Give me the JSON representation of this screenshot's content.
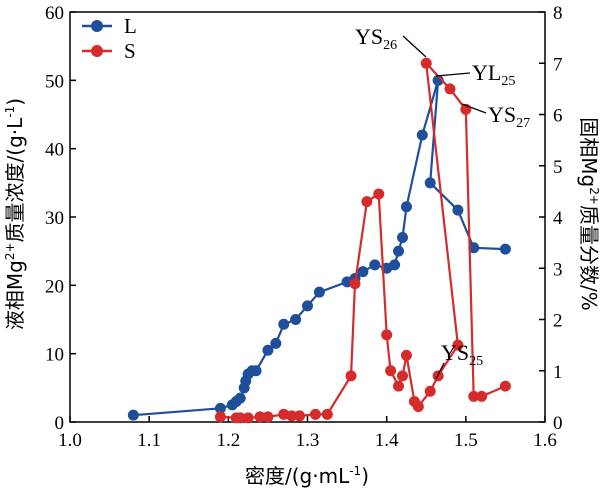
{
  "chart_data": {
    "type": "line",
    "xlabel": "密度/(g·mL",
    "xlabel_sup": "-1",
    "xlabel_tail": ")",
    "ylabel": "液相Mg",
    "ylabel_sup": "2+",
    "ylabel_tail": "质量浓度/(g·L",
    "ylabel_sup2": "-1",
    "ylabel_end": ")",
    "y2label": "固相Mg",
    "y2label_sup": "2+",
    "y2label_tail": "质量分数/%",
    "xlim": [
      1.0,
      1.6
    ],
    "ylim": [
      0,
      60
    ],
    "y2lim": [
      0,
      8
    ],
    "xticks": [
      "1.0",
      "1.1",
      "1.2",
      "1.3",
      "1.4",
      "1.5",
      "1.6"
    ],
    "yticks": [
      "0",
      "10",
      "20",
      "30",
      "40",
      "50",
      "60"
    ],
    "y2ticks": [
      "0",
      "1",
      "2",
      "3",
      "4",
      "5",
      "6",
      "7",
      "8"
    ],
    "legend_position": "top-left",
    "series": [
      {
        "name": "L",
        "color": "#1f4e9a",
        "axis": "left",
        "points": [
          [
            1.08,
            1.0
          ],
          [
            1.19,
            2.0
          ],
          [
            1.205,
            2.5
          ],
          [
            1.21,
            3.0
          ],
          [
            1.215,
            3.5
          ],
          [
            1.22,
            5.0
          ],
          [
            1.222,
            6.0
          ],
          [
            1.225,
            7.0
          ],
          [
            1.23,
            7.5
          ],
          [
            1.235,
            7.5
          ],
          [
            1.25,
            10.5
          ],
          [
            1.26,
            11.5
          ],
          [
            1.27,
            14.3
          ],
          [
            1.285,
            15.0
          ],
          [
            1.3,
            17.0
          ],
          [
            1.315,
            19.0
          ],
          [
            1.35,
            20.5
          ],
          [
            1.36,
            21.0
          ],
          [
            1.37,
            22.0
          ],
          [
            1.385,
            23.0
          ],
          [
            1.4,
            22.5
          ],
          [
            1.41,
            23.0
          ],
          [
            1.415,
            25.0
          ],
          [
            1.42,
            27.0
          ],
          [
            1.425,
            31.5
          ],
          [
            1.445,
            42.0
          ],
          [
            1.465,
            50.0
          ],
          [
            1.455,
            35.0
          ],
          [
            1.49,
            31.0
          ],
          [
            1.51,
            25.5
          ],
          [
            1.55,
            25.3
          ]
        ]
      },
      {
        "name": "S",
        "color": "#d62b2b",
        "axis": "right",
        "points": [
          [
            1.19,
            0.1
          ],
          [
            1.21,
            0.08
          ],
          [
            1.215,
            0.08
          ],
          [
            1.225,
            0.08
          ],
          [
            1.24,
            0.1
          ],
          [
            1.25,
            0.1
          ],
          [
            1.27,
            0.15
          ],
          [
            1.28,
            0.12
          ],
          [
            1.29,
            0.12
          ],
          [
            1.31,
            0.15
          ],
          [
            1.325,
            0.15
          ],
          [
            1.355,
            0.9
          ],
          [
            1.36,
            2.7
          ],
          [
            1.375,
            4.3
          ],
          [
            1.39,
            4.45
          ],
          [
            1.4,
            1.7
          ],
          [
            1.405,
            1.0
          ],
          [
            1.415,
            0.7
          ],
          [
            1.42,
            0.9
          ],
          [
            1.425,
            1.3
          ],
          [
            1.435,
            0.4
          ],
          [
            1.44,
            0.3
          ],
          [
            1.455,
            0.6
          ],
          [
            1.465,
            0.9
          ],
          [
            1.49,
            1.5
          ],
          [
            1.45,
            7.0
          ],
          [
            1.48,
            6.5
          ],
          [
            1.5,
            6.1
          ],
          [
            1.51,
            0.5
          ],
          [
            1.52,
            0.5
          ],
          [
            1.55,
            0.7
          ]
        ]
      }
    ],
    "annotations": [
      {
        "text": "YS",
        "sub": "26"
      },
      {
        "text": "YL",
        "sub": "25"
      },
      {
        "text": "YS",
        "sub": "27"
      },
      {
        "text": "YS",
        "sub": "25"
      }
    ]
  }
}
